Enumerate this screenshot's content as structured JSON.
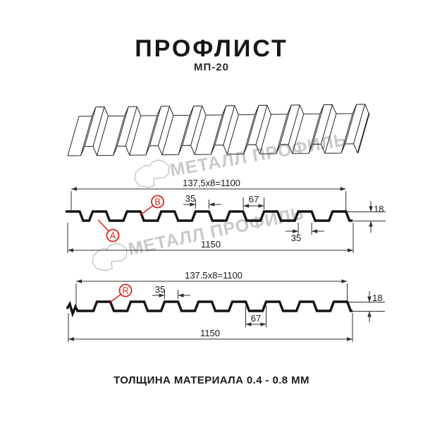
{
  "page": {
    "title": "ПРОФЛИСТ",
    "subtitle": "МП-20",
    "footer_note": "ТОЛЩИНА МАТЕРИАЛА 0.4 - 0.8 ММ"
  },
  "watermark": {
    "brand": "МЕТАЛЛ ПРОФИЛЬ"
  },
  "colors": {
    "red": "#d7241c",
    "watermark": "#c9c9c9",
    "line": "#141414"
  },
  "section_a": {
    "pitch_dim": "137,5x8=1100",
    "total_width_dim": "1150",
    "crest_width_dim": "35",
    "valley_width_dim": "67",
    "height_dim": "18",
    "crest_width_dim2": "35",
    "side_a_label": "A",
    "side_b_label": "B"
  },
  "section_r": {
    "pitch_dim": "137.5x8=1100",
    "total_width_dim": "1150",
    "crest_width_dim": "35",
    "valley_width_dim": "67",
    "height_dim": "18",
    "side_r_label": "R"
  }
}
